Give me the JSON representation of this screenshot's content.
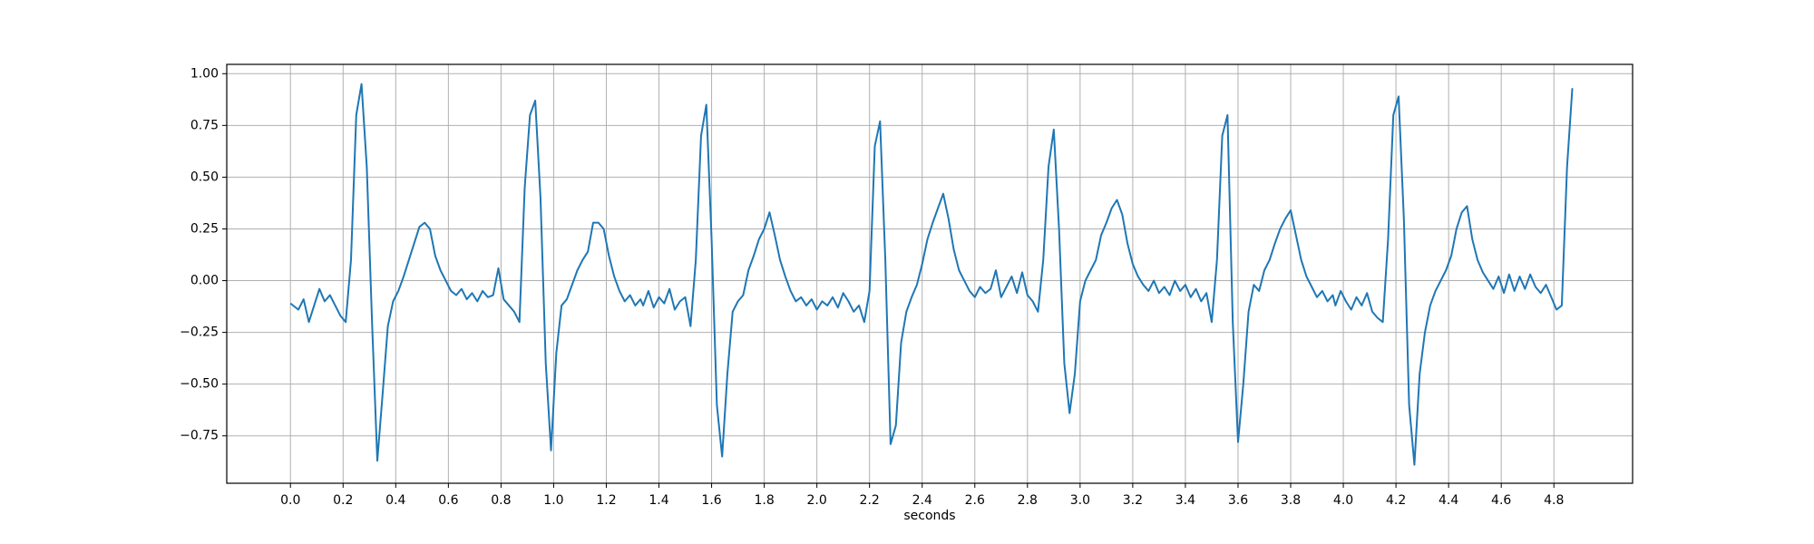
{
  "chart_data": {
    "type": "line",
    "xlabel": "seconds",
    "color": "#1f77b4",
    "grid": true,
    "xlim": [
      -0.242,
      5.099
    ],
    "ylim": [
      -0.979,
      1.045
    ],
    "xticks": [
      {
        "value": 0,
        "label": "0.0"
      },
      0.2,
      0.4,
      0.6,
      0.8,
      {
        "value": 1,
        "label": "1.0"
      },
      1.2,
      1.4,
      1.6,
      1.8,
      {
        "value": 2,
        "label": "2.0"
      },
      2.2,
      2.4,
      2.6,
      2.8,
      {
        "value": 3,
        "label": "3.0"
      },
      3.2,
      3.4,
      3.6,
      3.8,
      {
        "value": 4,
        "label": "4.0"
      },
      4.2,
      4.4,
      4.6,
      4.8
    ],
    "yticks": [
      {
        "value": -0.75,
        "label": "−0.75"
      },
      {
        "value": -0.5,
        "label": "−0.50"
      },
      {
        "value": -0.25,
        "label": "−0.25"
      },
      {
        "value": 0,
        "label": "0.00"
      },
      0.25,
      {
        "value": 0.5,
        "label": "0.50"
      },
      0.75,
      {
        "value": 1,
        "label": "1.00"
      }
    ],
    "x": [
      0.0,
      0.03,
      0.05,
      0.07,
      0.09,
      0.11,
      0.13,
      0.15,
      0.17,
      0.19,
      0.21,
      0.23,
      0.25,
      0.27,
      0.29,
      0.31,
      0.33,
      0.35,
      0.37,
      0.39,
      0.41,
      0.43,
      0.45,
      0.47,
      0.49,
      0.51,
      0.53,
      0.55,
      0.57,
      0.59,
      0.61,
      0.63,
      0.65,
      0.67,
      0.69,
      0.71,
      0.73,
      0.75,
      0.77,
      0.79,
      0.81,
      0.83,
      0.85,
      0.87,
      0.89,
      0.91,
      0.93,
      0.95,
      0.97,
      0.99,
      1.01,
      1.03,
      1.05,
      1.07,
      1.09,
      1.11,
      1.13,
      1.15,
      1.17,
      1.19,
      1.21,
      1.23,
      1.25,
      1.27,
      1.29,
      1.31,
      1.33,
      1.34,
      1.36,
      1.38,
      1.4,
      1.42,
      1.44,
      1.46,
      1.48,
      1.5,
      1.52,
      1.54,
      1.56,
      1.58,
      1.6,
      1.62,
      1.64,
      1.66,
      1.68,
      1.7,
      1.72,
      1.74,
      1.76,
      1.78,
      1.8,
      1.82,
      1.84,
      1.86,
      1.88,
      1.9,
      1.92,
      1.94,
      1.96,
      1.98,
      2.0,
      2.02,
      2.04,
      2.06,
      2.08,
      2.1,
      2.12,
      2.14,
      2.16,
      2.18,
      2.2,
      2.22,
      2.24,
      2.26,
      2.28,
      2.3,
      2.32,
      2.34,
      2.36,
      2.38,
      2.4,
      2.42,
      2.44,
      2.46,
      2.48,
      2.5,
      2.52,
      2.54,
      2.56,
      2.58,
      2.6,
      2.62,
      2.64,
      2.66,
      2.68,
      2.7,
      2.72,
      2.74,
      2.76,
      2.78,
      2.8,
      2.82,
      2.84,
      2.86,
      2.88,
      2.9,
      2.92,
      2.94,
      2.96,
      2.98,
      3.0,
      3.02,
      3.04,
      3.06,
      3.08,
      3.1,
      3.12,
      3.14,
      3.16,
      3.18,
      3.2,
      3.22,
      3.24,
      3.26,
      3.28,
      3.3,
      3.32,
      3.34,
      3.36,
      3.38,
      3.4,
      3.42,
      3.44,
      3.46,
      3.48,
      3.5,
      3.52,
      3.54,
      3.56,
      3.58,
      3.6,
      3.62,
      3.64,
      3.66,
      3.68,
      3.7,
      3.72,
      3.74,
      3.76,
      3.78,
      3.8,
      3.82,
      3.84,
      3.86,
      3.88,
      3.9,
      3.92,
      3.94,
      3.96,
      3.97,
      3.99,
      4.01,
      4.03,
      4.05,
      4.07,
      4.09,
      4.11,
      4.13,
      4.15,
      4.17,
      4.19,
      4.21,
      4.23,
      4.25,
      4.27,
      4.29,
      4.31,
      4.33,
      4.35,
      4.37,
      4.39,
      4.41,
      4.43,
      4.45,
      4.47,
      4.49,
      4.51,
      4.53,
      4.55,
      4.57,
      4.59,
      4.61,
      4.63,
      4.65,
      4.67,
      4.69,
      4.71,
      4.73,
      4.75,
      4.77,
      4.79,
      4.81,
      4.83,
      4.85,
      4.87
    ],
    "values": [
      -0.11,
      -0.14,
      -0.09,
      -0.2,
      -0.12,
      -0.04,
      -0.1,
      -0.07,
      -0.12,
      -0.17,
      -0.2,
      0.1,
      0.8,
      0.95,
      0.55,
      -0.2,
      -0.87,
      -0.55,
      -0.22,
      -0.1,
      -0.05,
      0.02,
      0.1,
      0.18,
      0.26,
      0.28,
      0.25,
      0.12,
      0.05,
      0.0,
      -0.05,
      -0.07,
      -0.04,
      -0.09,
      -0.06,
      -0.1,
      -0.05,
      -0.08,
      -0.07,
      0.06,
      -0.09,
      -0.12,
      -0.15,
      -0.2,
      0.45,
      0.8,
      0.87,
      0.4,
      -0.4,
      -0.82,
      -0.35,
      -0.12,
      -0.09,
      -0.02,
      0.05,
      0.1,
      0.14,
      0.28,
      0.28,
      0.25,
      0.12,
      0.02,
      -0.05,
      -0.1,
      -0.07,
      -0.12,
      -0.09,
      -0.12,
      -0.05,
      -0.13,
      -0.08,
      -0.11,
      -0.04,
      -0.14,
      -0.1,
      -0.08,
      -0.22,
      0.1,
      0.7,
      0.85,
      0.2,
      -0.6,
      -0.85,
      -0.45,
      -0.15,
      -0.1,
      -0.07,
      0.05,
      0.12,
      0.2,
      0.25,
      0.33,
      0.22,
      0.1,
      0.02,
      -0.05,
      -0.1,
      -0.08,
      -0.12,
      -0.09,
      -0.14,
      -0.1,
      -0.12,
      -0.08,
      -0.13,
      -0.06,
      -0.1,
      -0.15,
      -0.12,
      -0.2,
      -0.05,
      0.65,
      0.77,
      0.1,
      -0.79,
      -0.7,
      -0.3,
      -0.15,
      -0.08,
      -0.02,
      0.08,
      0.2,
      0.28,
      0.35,
      0.42,
      0.3,
      0.15,
      0.05,
      0.0,
      -0.05,
      -0.08,
      -0.03,
      -0.06,
      -0.04,
      0.05,
      -0.08,
      -0.03,
      0.02,
      -0.06,
      0.04,
      -0.07,
      -0.1,
      -0.15,
      0.1,
      0.55,
      0.73,
      0.25,
      -0.4,
      -0.64,
      -0.45,
      -0.1,
      0.0,
      0.05,
      0.1,
      0.22,
      0.28,
      0.35,
      0.39,
      0.32,
      0.18,
      0.08,
      0.02,
      -0.02,
      -0.05,
      0.0,
      -0.06,
      -0.03,
      -0.07,
      0.0,
      -0.05,
      -0.02,
      -0.08,
      -0.04,
      -0.1,
      -0.06,
      -0.2,
      0.1,
      0.7,
      0.8,
      -0.2,
      -0.78,
      -0.5,
      -0.15,
      -0.02,
      -0.05,
      0.05,
      0.1,
      0.18,
      0.25,
      0.3,
      0.34,
      0.22,
      0.1,
      0.02,
      -0.03,
      -0.08,
      -0.05,
      -0.1,
      -0.07,
      -0.12,
      -0.05,
      -0.1,
      -0.14,
      -0.08,
      -0.12,
      -0.06,
      -0.15,
      -0.18,
      -0.2,
      0.2,
      0.8,
      0.89,
      0.3,
      -0.6,
      -0.89,
      -0.45,
      -0.25,
      -0.12,
      -0.05,
      0.0,
      0.05,
      0.12,
      0.25,
      0.33,
      0.36,
      0.2,
      0.1,
      0.04,
      0.0,
      -0.04,
      0.02,
      -0.06,
      0.03,
      -0.05,
      0.02,
      -0.04,
      0.03,
      -0.03,
      -0.06,
      -0.02,
      -0.08,
      -0.14,
      -0.12,
      0.55,
      0.93
    ]
  }
}
